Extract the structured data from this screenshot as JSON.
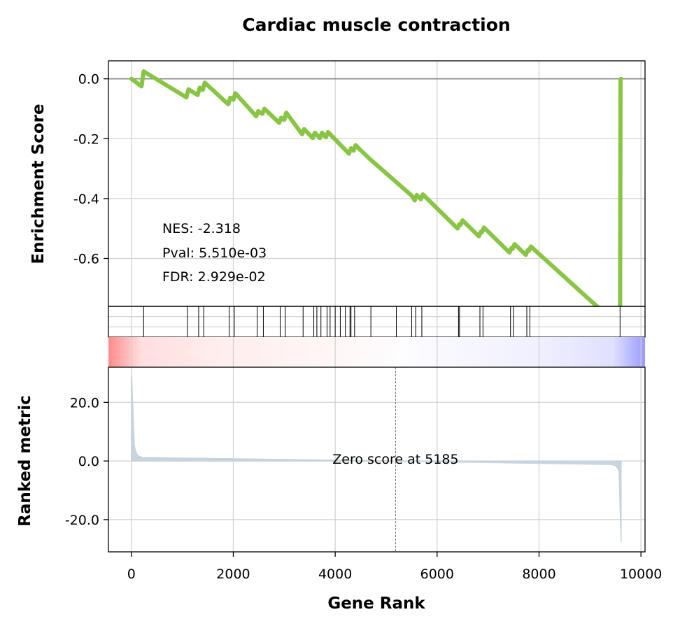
{
  "chart_data": {
    "type": "line",
    "title": "Cardiac muscle contraction",
    "xlabel": "Gene Rank",
    "xlim": [
      -450,
      10080
    ],
    "x_ticks": [
      0,
      2000,
      4000,
      6000,
      8000,
      10000
    ],
    "x_tick_labels": [
      "0",
      "2000",
      "4000",
      "6000",
      "8000",
      "10000"
    ],
    "grid": true,
    "enrichment": {
      "ylabel": "Enrichment Score",
      "ylim": [
        -0.76,
        0.06
      ],
      "y_ticks": [
        0.0,
        -0.2,
        -0.4,
        -0.6
      ],
      "y_tick_labels": [
        "0.0",
        "-0.2",
        "-0.4",
        "-0.6"
      ],
      "baseline": 0.0,
      "line_color": "#88c544",
      "x": [
        0,
        200,
        240,
        1080,
        1120,
        1300,
        1340,
        1400,
        1440,
        1900,
        1940,
        2000,
        2040,
        2450,
        2490,
        2570,
        2610,
        2900,
        2940,
        3000,
        3040,
        3350,
        3390,
        3560,
        3600,
        3700,
        3740,
        3820,
        3860,
        4270,
        4310,
        4360,
        4400,
        4680,
        5500,
        5560,
        5600,
        5680,
        5720,
        6400,
        6440,
        6460,
        6500,
        6820,
        6860,
        6880,
        6920,
        7420,
        7460,
        7480,
        7520,
        7740,
        7780,
        7800,
        7840,
        9590,
        9600,
        9610
      ],
      "values": [
        0.0,
        -0.025,
        0.025,
        -0.062,
        -0.035,
        -0.054,
        -0.03,
        -0.037,
        -0.013,
        -0.085,
        -0.063,
        -0.07,
        -0.048,
        -0.125,
        -0.108,
        -0.117,
        -0.1,
        -0.147,
        -0.13,
        -0.137,
        -0.113,
        -0.185,
        -0.168,
        -0.198,
        -0.18,
        -0.198,
        -0.18,
        -0.195,
        -0.178,
        -0.25,
        -0.232,
        -0.24,
        -0.222,
        -0.268,
        -0.39,
        -0.406,
        -0.388,
        -0.402,
        -0.386,
        -0.5,
        -0.485,
        -0.488,
        -0.473,
        -0.526,
        -0.51,
        -0.513,
        -0.497,
        -0.58,
        -0.565,
        -0.568,
        -0.552,
        -0.588,
        -0.572,
        -0.575,
        -0.56,
        -0.83,
        -0.005,
        0.0
      ],
      "annotations": {
        "nes": "NES: -2.318",
        "pval": "Pval: 5.510e-03",
        "fdr": "FDR: 2.929e-02"
      }
    },
    "hits": [
      240,
      1100,
      1320,
      1420,
      1920,
      2020,
      2470,
      2590,
      2920,
      3020,
      3370,
      3580,
      3640,
      3720,
      3840,
      3900,
      4000,
      4100,
      4200,
      4290,
      4310,
      4380,
      4700,
      5200,
      5500,
      5580,
      5700,
      6420,
      6440,
      6840,
      6900,
      7440,
      7500,
      7760,
      7820,
      9590
    ],
    "heatmap": {
      "colormap": "bwr",
      "description_colors": [
        "#ff8080",
        "#ffffff",
        "#8080ff"
      ]
    },
    "ranked_metric": {
      "ylabel": "Ranked metric",
      "ylim": [
        -31,
        32
      ],
      "y_ticks": [
        20.0,
        0.0,
        -20.0
      ],
      "y_tick_labels": [
        "20.0",
        "0.0",
        "-20.0"
      ],
      "fill_color": "#c8d4dd",
      "zero_score_rank": 5185,
      "zero_score_text": "Zero score at 5185"
    }
  }
}
